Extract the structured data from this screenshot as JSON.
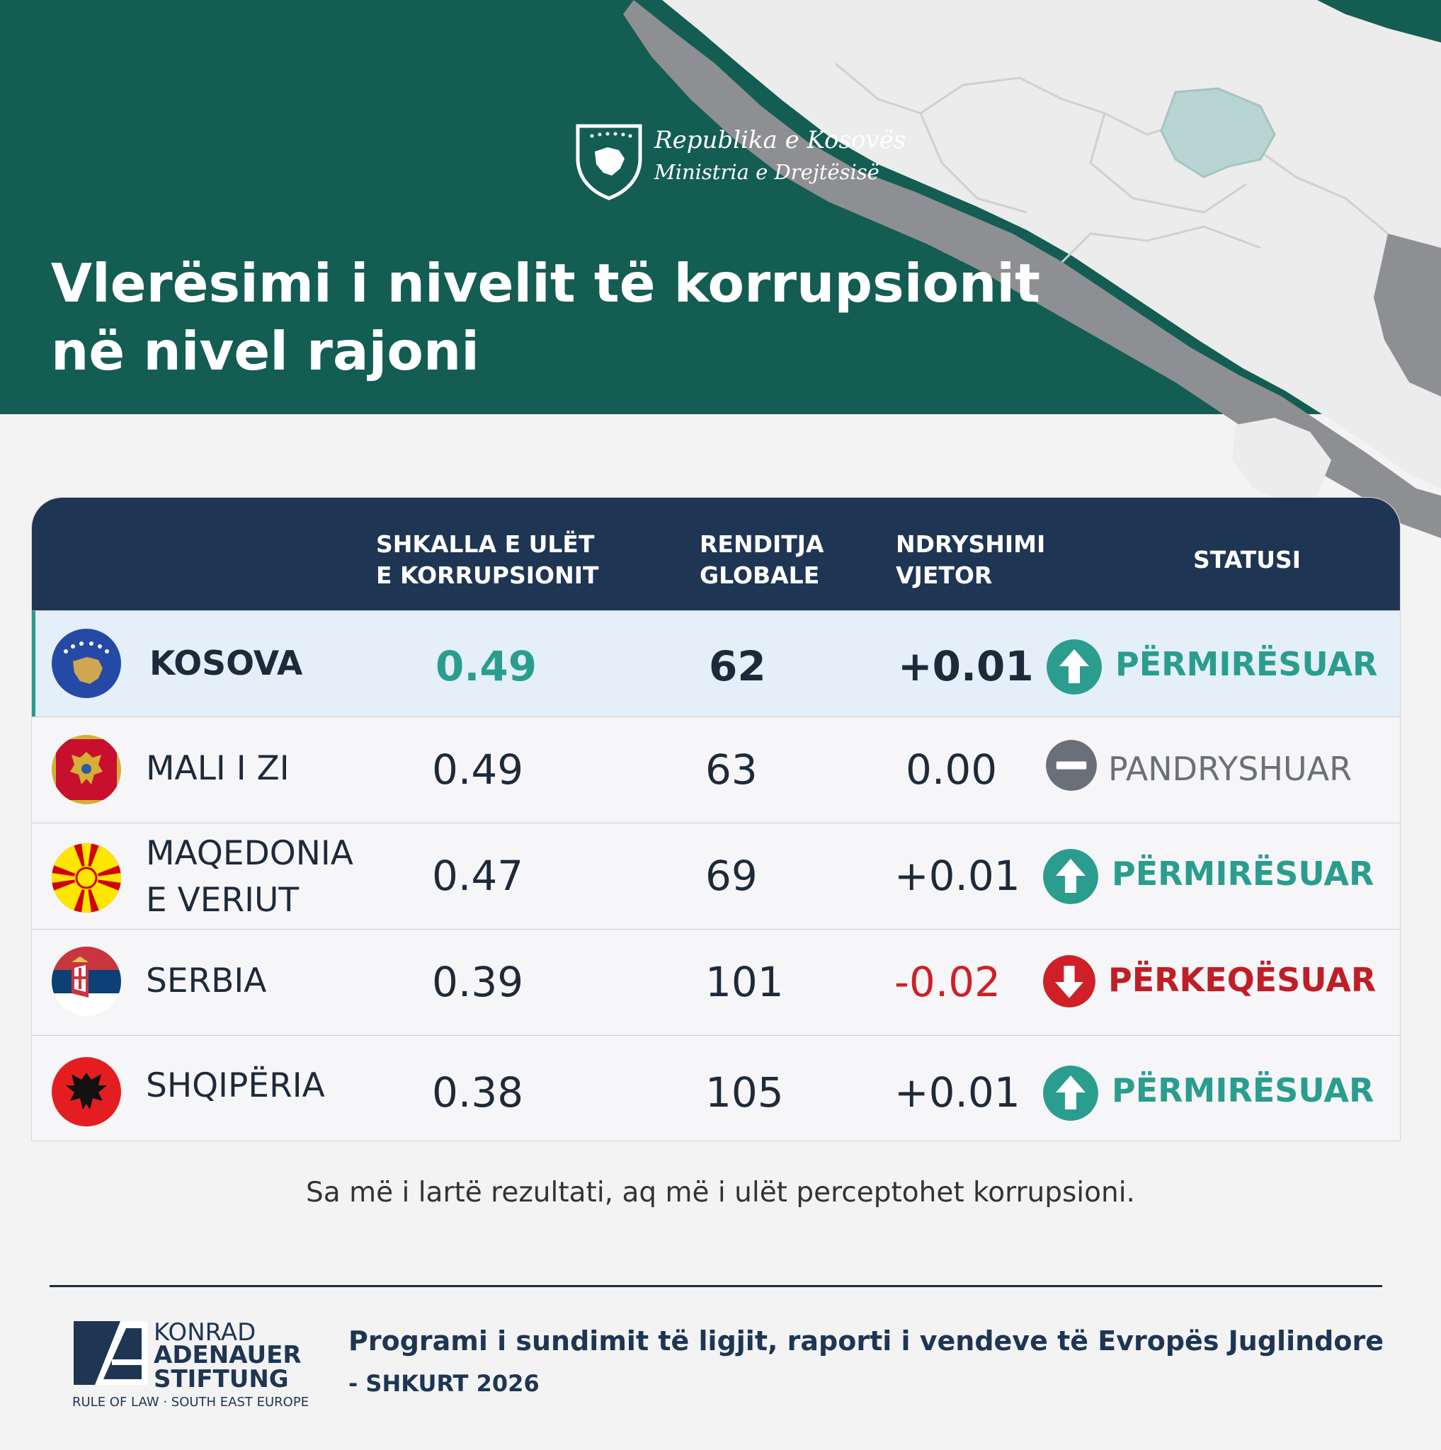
{
  "logo": {
    "line1": "Republika e Kosovës",
    "line2": "Ministria e Drejtësisë"
  },
  "title": {
    "line1": "Vlerësimi i nivelit të korrupsionit",
    "line2": "në nivel rajoni"
  },
  "table": {
    "headers": {
      "score": "SHKALLA E ULËT\nE KORRUPSIONIT",
      "rank": "RENDITJA\nGLOBALE",
      "change": "NDRYSHIMI\nVJETOR",
      "status": "STATUSI"
    },
    "rows": [
      {
        "country": "KOSOVA",
        "score": "0.49",
        "rank": "62",
        "change": "+0.01",
        "status": "PËRMIRËSUAR",
        "status_type": "up",
        "flag": "kosovo-flag-icon"
      },
      {
        "country": "MALI I ZI",
        "score": "0.49",
        "rank": "63",
        "change": "0.00",
        "status": "PANDRYSHUAR",
        "status_type": "same",
        "flag": "montenegro-flag-icon"
      },
      {
        "country": "MAQEDONIA\nE VERIUT",
        "score": "0.47",
        "rank": "69",
        "change": "+0.01",
        "status": "PËRMIRËSUAR",
        "status_type": "up",
        "flag": "north-macedonia-flag-icon"
      },
      {
        "country": "SERBIA",
        "score": "0.39",
        "rank": "101",
        "change": "-0.02",
        "status": "PËRKEQËSUAR",
        "status_type": "down",
        "flag": "serbia-flag-icon"
      },
      {
        "country": "SHQIPËRIA",
        "score": "0.38",
        "rank": "105",
        "change": "+0.01",
        "status": "PËRMIRËSUAR",
        "status_type": "up",
        "flag": "albania-flag-icon"
      }
    ]
  },
  "note": "Sa më i lartë rezultati, aq më i ulët perceptohet korrupsioni.",
  "footer": {
    "kas_line1": "KONRAD",
    "kas_line2": "ADENAUER",
    "kas_line3": "STIFTUNG",
    "kas_line4": "RULE OF LAW · SOUTH EAST EUROPE",
    "source_line1": "Programi i sundimit të ligjit, raporti i vendeve të Evropës Juglindore",
    "source_line2": "- SHKURT 2026"
  },
  "colors": {
    "header_green": "#135d53",
    "table_header": "#1e3554",
    "teal": "#2a9d8f",
    "gray": "#6b6f78",
    "red": "#cf2027",
    "dark_text": "#1e2a3a"
  }
}
